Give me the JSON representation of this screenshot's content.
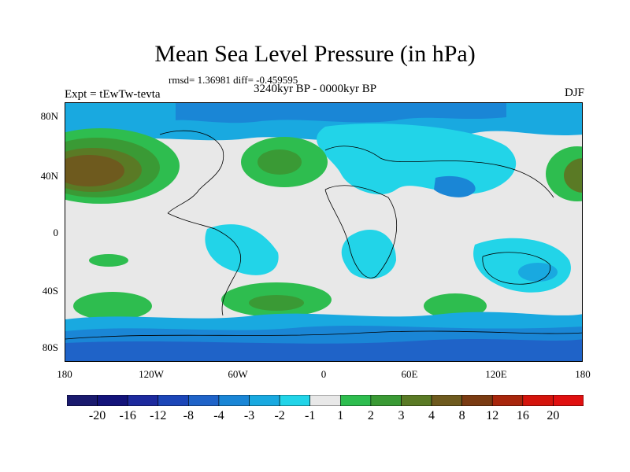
{
  "title": "Mean Sea Level Pressure (in hPa)",
  "stats": "rmsd= 1.36981 diff= -0.459595",
  "period": "3240kyr BP - 0000kyr BP",
  "experiment": "Expt = tEwTw-tevta",
  "season": "DJF",
  "lat_labels": [
    "80N",
    "40N",
    "0",
    "40S",
    "80S"
  ],
  "lon_labels": [
    "180",
    "120W",
    "60W",
    "0",
    "60E",
    "120E",
    "180"
  ],
  "colorbar": {
    "labels": [
      "-20",
      "-16",
      "-12",
      "-8",
      "-4",
      "-3",
      "-2",
      "-1",
      "1",
      "2",
      "3",
      "4",
      "8",
      "12",
      "16",
      "20"
    ],
    "colors": [
      "#1a1a6e",
      "#13137a",
      "#1d2a9e",
      "#1c46b8",
      "#1f63c8",
      "#1a86d6",
      "#19a9e0",
      "#22d4e8",
      "#e8e8e8",
      "#2ebd4f",
      "#3a9a35",
      "#5a7a25",
      "#6e5a1e",
      "#7a3b12",
      "#a8260c",
      "#d4140c",
      "#e01010"
    ]
  }
}
